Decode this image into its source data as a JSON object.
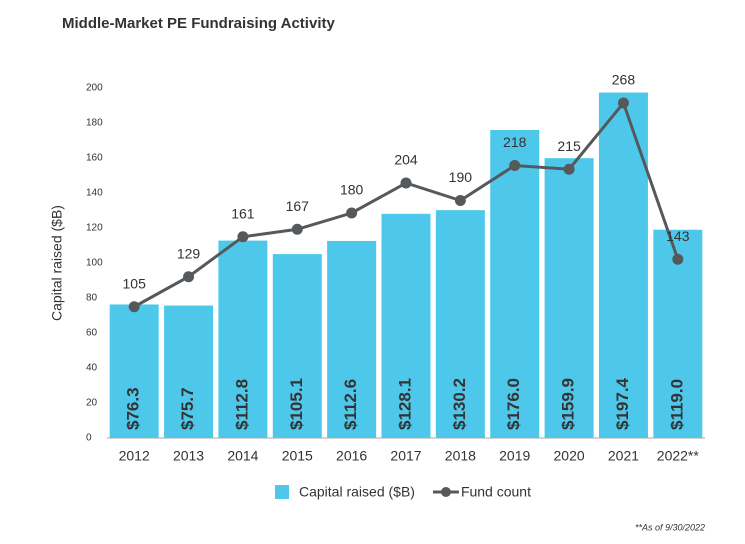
{
  "chart_data": {
    "type": "bar-line",
    "title": "Middle-Market PE Fundraising Activity",
    "y_label": "Capital raised ($B)",
    "footnote": "**As of 9/30/2022",
    "categories": [
      "2012",
      "2013",
      "2014",
      "2015",
      "2016",
      "2017",
      "2018",
      "2019",
      "2020",
      "2021",
      "2022**"
    ],
    "series": [
      {
        "name": "Capital raised ($B)",
        "type": "bar",
        "color": "#4ec8ea",
        "values": [
          76.3,
          75.7,
          112.8,
          105.1,
          112.6,
          128.1,
          130.2,
          176.0,
          159.9,
          197.4,
          119.0
        ],
        "value_labels": [
          "$76.3",
          "$75.7",
          "$112.8",
          "$105.1",
          "$112.6",
          "$128.1",
          "$130.2",
          "$176.0",
          "$159.9",
          "$197.4",
          "$119.0"
        ]
      },
      {
        "name": "Fund count",
        "type": "line",
        "axis": "y2",
        "color": "#55595c",
        "values": [
          105,
          129,
          161,
          167,
          180,
          204,
          190,
          218,
          215,
          268,
          143
        ]
      }
    ],
    "ylim": [
      0,
      200
    ],
    "yticks": [
      0,
      20,
      40,
      60,
      80,
      100,
      120,
      140,
      160,
      180,
      200
    ],
    "y2lim": [
      0,
      280
    ]
  }
}
